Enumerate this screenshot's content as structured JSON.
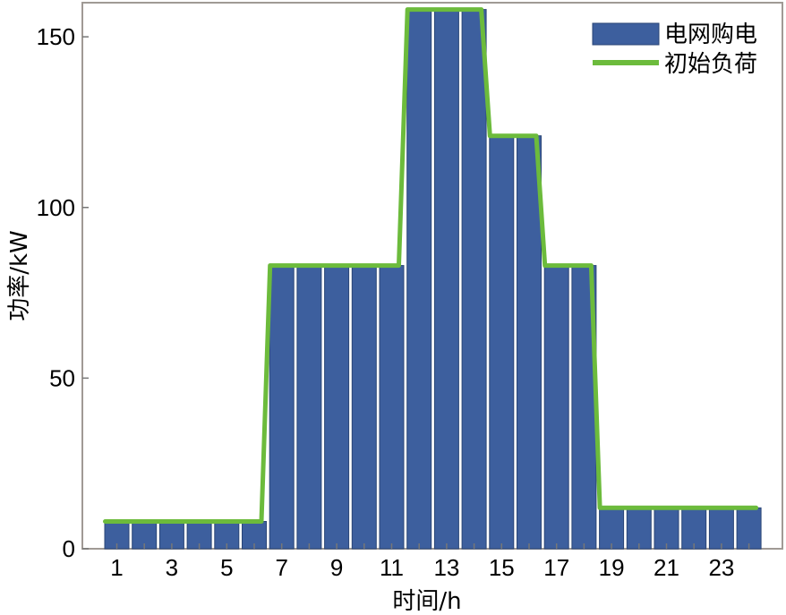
{
  "chart_data": {
    "type": "bar",
    "xlabel": "时间/h",
    "ylabel": "功率/kW",
    "x": [
      1,
      2,
      3,
      4,
      5,
      6,
      7,
      8,
      9,
      10,
      11,
      12,
      13,
      14,
      15,
      16,
      17,
      18,
      19,
      20,
      21,
      22,
      23,
      24
    ],
    "x_tick_labels": [
      "1",
      "3",
      "5",
      "7",
      "9",
      "11",
      "13",
      "15",
      "17",
      "19",
      "21",
      "23"
    ],
    "ylim": [
      0,
      160
    ],
    "y_ticks": [
      0,
      50,
      100,
      150
    ],
    "grid": false,
    "legend_position": "top-right",
    "series": [
      {
        "name": "电网购电",
        "type": "bar",
        "color": "#3d5f9e",
        "values": [
          8,
          8,
          8,
          8,
          8,
          8,
          83,
          83,
          83,
          83,
          83,
          158,
          158,
          158,
          121,
          121,
          83,
          83,
          12,
          12,
          12,
          12,
          12,
          12
        ]
      },
      {
        "name": "初始负荷",
        "type": "line",
        "color": "#6cbb3c",
        "values": [
          8,
          8,
          8,
          8,
          8,
          8,
          83,
          83,
          83,
          83,
          83,
          158,
          158,
          158,
          121,
          121,
          83,
          83,
          12,
          12,
          12,
          12,
          12,
          12
        ]
      }
    ]
  }
}
